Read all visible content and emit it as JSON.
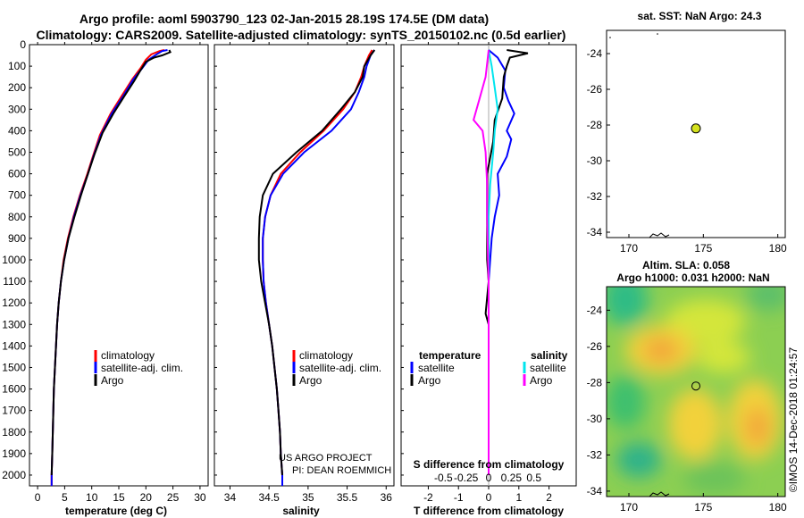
{
  "header": {
    "line1": "Argo profile: aoml 5903790_123 02-Jan-2015 28.19S 174.5E (DM data)",
    "line2": "Climatology: CARS2009. Satellite-adjusted climatology: synTS_20150102.nc (0.5d earlier)"
  },
  "colors": {
    "climatology": "#ff0000",
    "satellite": "#0000ff",
    "argo": "#000000",
    "s_satellite": "#00e5ee",
    "s_argo": "#ff00ff",
    "marker": "#d4e11e"
  },
  "depth_ticks": [
    0,
    100,
    200,
    300,
    400,
    500,
    600,
    700,
    800,
    900,
    1000,
    1100,
    1200,
    1300,
    1400,
    1500,
    1600,
    1700,
    1800,
    1900,
    2000
  ],
  "chart_data": [
    {
      "type": "line",
      "xlabel": "temperature (deg C)",
      "xticks": [
        0,
        5,
        10,
        15,
        20,
        25,
        30
      ],
      "xlim": [
        -1.5,
        31.5
      ],
      "ylim": [
        2050,
        0
      ],
      "series": [
        {
          "name": "climatology",
          "color": "#ff0000",
          "points": [
            [
              23.4,
              25
            ],
            [
              22.5,
              30
            ],
            [
              21,
              45
            ],
            [
              20,
              70
            ],
            [
              19,
              110
            ],
            [
              17.5,
              160
            ],
            [
              15.5,
              240
            ],
            [
              13.5,
              320
            ],
            [
              11.5,
              420
            ],
            [
              10.2,
              520
            ],
            [
              9.2,
              600
            ],
            [
              7.8,
              700
            ],
            [
              6.6,
              800
            ],
            [
              5.6,
              900
            ],
            [
              4.8,
              1000
            ],
            [
              4.3,
              1100
            ],
            [
              3.9,
              1200
            ],
            [
              3.6,
              1300
            ],
            [
              3.4,
              1400
            ],
            [
              3.2,
              1500
            ],
            [
              3.0,
              1600
            ],
            [
              2.9,
              1700
            ],
            [
              2.8,
              1800
            ],
            [
              2.7,
              1900
            ],
            [
              2.6,
              2000
            ],
            [
              2.6,
              2050
            ]
          ]
        },
        {
          "name": "satellite-adj. clim.",
          "color": "#0000ff",
          "points": [
            [
              24.0,
              25
            ],
            [
              23.0,
              30
            ],
            [
              22,
              45
            ],
            [
              20.5,
              70
            ],
            [
              19.3,
              110
            ],
            [
              17.7,
              160
            ],
            [
              15.8,
              240
            ],
            [
              13.7,
              320
            ],
            [
              11.7,
              420
            ],
            [
              10.3,
              520
            ],
            [
              9.3,
              600
            ],
            [
              7.9,
              700
            ],
            [
              6.7,
              800
            ],
            [
              5.7,
              900
            ],
            [
              4.9,
              1000
            ],
            [
              4.3,
              1100
            ],
            [
              3.9,
              1200
            ],
            [
              3.6,
              1300
            ],
            [
              3.4,
              1400
            ],
            [
              3.2,
              1500
            ],
            [
              3.0,
              1600
            ],
            [
              2.9,
              1700
            ],
            [
              2.8,
              1800
            ],
            [
              2.7,
              1900
            ],
            [
              2.6,
              2000
            ],
            [
              2.6,
              2050
            ]
          ]
        },
        {
          "name": "Argo",
          "color": "#000000",
          "points": [
            [
              24.3,
              25
            ],
            [
              24.5,
              35
            ],
            [
              23,
              50
            ],
            [
              21.5,
              60
            ],
            [
              20,
              80
            ],
            [
              19,
              120
            ],
            [
              17.8,
              170
            ],
            [
              16,
              240
            ],
            [
              14,
              320
            ],
            [
              12,
              410
            ],
            [
              10.5,
              510
            ],
            [
              9.3,
              600
            ],
            [
              8.0,
              700
            ],
            [
              6.8,
              800
            ],
            [
              5.7,
              900
            ],
            [
              4.9,
              1000
            ],
            [
              4.3,
              1100
            ],
            [
              3.9,
              1200
            ],
            [
              3.6,
              1300
            ],
            [
              3.4,
              1400
            ],
            [
              3.2,
              1500
            ],
            [
              3.0,
              1600
            ],
            [
              2.9,
              1700
            ],
            [
              2.8,
              1800
            ],
            [
              2.7,
              1900
            ],
            [
              2.6,
              2000
            ]
          ]
        }
      ],
      "legend": [
        "climatology",
        "satellite-adj. clim.",
        "Argo"
      ]
    },
    {
      "type": "line",
      "xlabel": "salinity",
      "xticks": [
        34,
        34.5,
        35,
        35.5,
        36
      ],
      "xlim": [
        33.8,
        36.1
      ],
      "ylim": [
        2050,
        0
      ],
      "series": [
        {
          "name": "climatology",
          "color": "#ff0000",
          "points": [
            [
              35.82,
              25
            ],
            [
              35.78,
              50
            ],
            [
              35.72,
              100
            ],
            [
              35.68,
              150
            ],
            [
              35.6,
              220
            ],
            [
              35.45,
              300
            ],
            [
              35.2,
              400
            ],
            [
              34.9,
              500
            ],
            [
              34.65,
              600
            ],
            [
              34.52,
              700
            ],
            [
              34.45,
              800
            ],
            [
              34.42,
              900
            ],
            [
              34.42,
              1000
            ],
            [
              34.43,
              1100
            ],
            [
              34.46,
              1200
            ],
            [
              34.5,
              1300
            ],
            [
              34.54,
              1400
            ],
            [
              34.57,
              1500
            ],
            [
              34.6,
              1600
            ],
            [
              34.62,
              1700
            ],
            [
              34.64,
              1800
            ],
            [
              34.65,
              1900
            ],
            [
              34.67,
              2000
            ],
            [
              34.67,
              2050
            ]
          ]
        },
        {
          "name": "satellite-adj. clim.",
          "color": "#0000ff",
          "points": [
            [
              35.85,
              25
            ],
            [
              35.8,
              50
            ],
            [
              35.75,
              100
            ],
            [
              35.72,
              150
            ],
            [
              35.65,
              220
            ],
            [
              35.55,
              300
            ],
            [
              35.3,
              400
            ],
            [
              34.95,
              500
            ],
            [
              34.68,
              600
            ],
            [
              34.52,
              700
            ],
            [
              34.45,
              800
            ],
            [
              34.42,
              900
            ],
            [
              34.42,
              1000
            ],
            [
              34.43,
              1100
            ],
            [
              34.46,
              1200
            ],
            [
              34.5,
              1300
            ],
            [
              34.54,
              1400
            ],
            [
              34.57,
              1500
            ],
            [
              34.6,
              1600
            ],
            [
              34.62,
              1700
            ],
            [
              34.64,
              1800
            ],
            [
              34.65,
              1900
            ],
            [
              34.67,
              2000
            ],
            [
              34.67,
              2050
            ]
          ]
        },
        {
          "name": "Argo",
          "color": "#000000",
          "points": [
            [
              35.85,
              25
            ],
            [
              35.8,
              50
            ],
            [
              35.72,
              100
            ],
            [
              35.7,
              150
            ],
            [
              35.6,
              220
            ],
            [
              35.42,
              300
            ],
            [
              35.18,
              400
            ],
            [
              34.85,
              500
            ],
            [
              34.55,
              600
            ],
            [
              34.42,
              700
            ],
            [
              34.38,
              800
            ],
            [
              34.37,
              900
            ],
            [
              34.37,
              1000
            ],
            [
              34.4,
              1100
            ],
            [
              34.45,
              1200
            ],
            [
              34.5,
              1300
            ],
            [
              34.54,
              1400
            ],
            [
              34.57,
              1500
            ],
            [
              34.6,
              1600
            ],
            [
              34.62,
              1700
            ],
            [
              34.64,
              1800
            ],
            [
              34.65,
              1900
            ],
            [
              34.67,
              2000
            ]
          ]
        }
      ],
      "legend": [
        "climatology",
        "satellite-adj. clim.",
        "Argo"
      ],
      "annotations": [
        "US ARGO PROJECT",
        "PI: DEAN ROEMMICH"
      ]
    },
    {
      "type": "line",
      "xlabel": "T difference from climatology",
      "xlabel_top": "S difference from climatology",
      "xticks": [
        -2,
        -1,
        0,
        1,
        2
      ],
      "xticks_top": [
        "-0.5",
        "-0.25",
        "0",
        "0.25",
        "0.5"
      ],
      "xlim": [
        -2.9,
        2.9
      ],
      "ylim": [
        2050,
        0
      ],
      "series": [
        {
          "name": "temperature satellite",
          "color": "#0000ff",
          "points": [
            [
              0,
              25
            ],
            [
              0.3,
              60
            ],
            [
              0.55,
              120
            ],
            [
              0.5,
              200
            ],
            [
              0.65,
              260
            ],
            [
              0.85,
              320
            ],
            [
              0.6,
              400
            ],
            [
              0.75,
              440
            ],
            [
              0.6,
              520
            ],
            [
              0.3,
              600
            ],
            [
              0.35,
              700
            ],
            [
              0.2,
              800
            ],
            [
              0.1,
              900
            ],
            [
              0.05,
              1000
            ],
            [
              0,
              1100
            ],
            [
              0,
              1500
            ],
            [
              0,
              2000
            ]
          ]
        },
        {
          "name": "temperature Argo",
          "color": "#000000",
          "points": [
            [
              0.6,
              25
            ],
            [
              1.3,
              40
            ],
            [
              0.7,
              60
            ],
            [
              0.6,
              100
            ],
            [
              0.5,
              150
            ],
            [
              0.45,
              250
            ],
            [
              0.2,
              350
            ],
            [
              0.15,
              450
            ],
            [
              -0.05,
              600
            ],
            [
              -0.05,
              700
            ],
            [
              -0.05,
              900
            ],
            [
              -0.05,
              1000
            ],
            [
              0,
              1100
            ],
            [
              -0.1,
              1250
            ],
            [
              0,
              1300
            ],
            [
              0,
              2000
            ]
          ]
        },
        {
          "name": "salinity satellite",
          "color": "#00e5ee",
          "points": [
            [
              0,
              25
            ],
            [
              0.1,
              100
            ],
            [
              0.2,
              200
            ],
            [
              0.3,
              300
            ],
            [
              0.2,
              400
            ],
            [
              0.15,
              500
            ],
            [
              0.05,
              650
            ],
            [
              0,
              800
            ],
            [
              0,
              900
            ],
            [
              0,
              2000
            ]
          ]
        },
        {
          "name": "salinity Argo",
          "color": "#ff00ff",
          "points": [
            [
              0,
              25
            ],
            [
              -0.1,
              150
            ],
            [
              -0.3,
              250
            ],
            [
              -0.5,
              350
            ],
            [
              -0.2,
              400
            ],
            [
              -0.1,
              500
            ],
            [
              -0.05,
              650
            ],
            [
              -0.05,
              800
            ],
            [
              -0.02,
              1000
            ],
            [
              0,
              1100
            ],
            [
              0,
              2000
            ]
          ]
        }
      ],
      "legend_left_title": "temperature",
      "legend_right_title": "salinity",
      "legend": [
        "satellite",
        "Argo"
      ]
    },
    {
      "type": "scatter",
      "title": "sat. SST: NaN Argo: 24.3",
      "xticks": [
        170,
        175,
        180
      ],
      "yticks": [
        -24,
        -26,
        -28,
        -30,
        -32,
        -34
      ],
      "xlim": [
        168.5,
        180.5
      ],
      "ylim": [
        -34.3,
        -22.7
      ],
      "points": [
        [
          174.5,
          -28.19
        ]
      ]
    },
    {
      "type": "heatmap",
      "title_line1": "Altim. SLA: 0.058",
      "title_line2": "Argo h1000: 0.031 h2000: NaN",
      "xticks": [
        170,
        175,
        180
      ],
      "yticks": [
        -24,
        -26,
        -28,
        -30,
        -32,
        -34
      ],
      "xlim": [
        168.5,
        180.5
      ],
      "ylim": [
        -34.3,
        -22.7
      ],
      "points": [
        [
          174.5,
          -28.19
        ]
      ]
    }
  ],
  "credit": "©IMOS 14-Dec-2018 01:24:57"
}
